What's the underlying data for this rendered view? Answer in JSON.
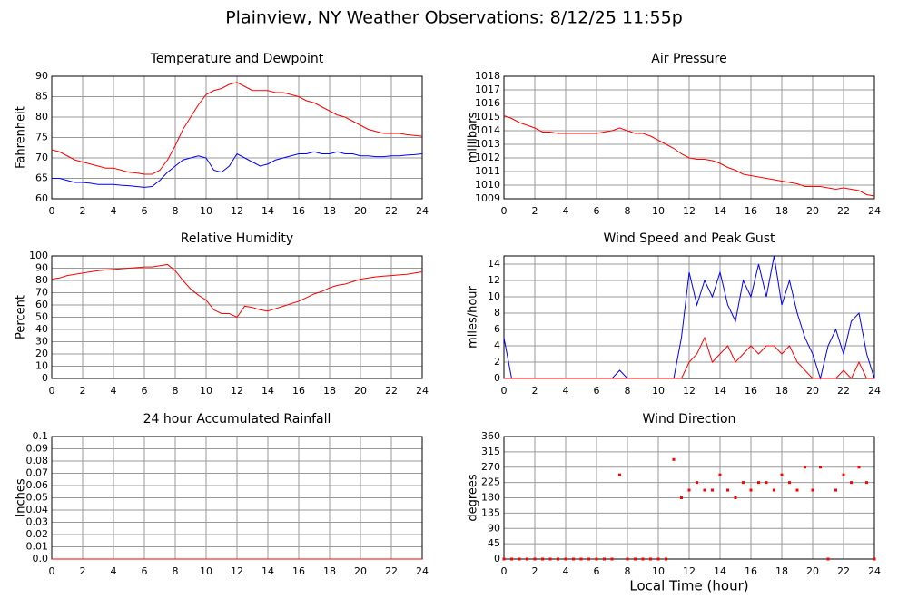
{
  "title": "Plainview, NY Weather Observations: 8/12/25 11:55p",
  "chart_data": [
    {
      "type": "line",
      "title": "Temperature and Dewpoint",
      "ylabel": "Fahrenheit",
      "x": [
        0,
        0.5,
        1,
        1.5,
        2,
        2.5,
        3,
        3.5,
        4,
        4.5,
        5,
        5.5,
        6,
        6.5,
        7,
        7.5,
        8,
        8.5,
        9,
        9.5,
        10,
        10.5,
        11,
        11.5,
        12,
        12.5,
        13,
        13.5,
        14,
        14.5,
        15,
        15.5,
        16,
        16.5,
        17,
        17.5,
        18,
        18.5,
        19,
        19.5,
        20,
        20.5,
        21,
        21.5,
        22,
        22.5,
        23,
        23.5,
        24
      ],
      "series": [
        {
          "color": "#ff0000",
          "values": [
            72,
            71.5,
            70.5,
            69.5,
            69,
            68.5,
            68,
            67.5,
            67.5,
            67,
            66.5,
            66.3,
            66,
            66,
            67,
            69.5,
            73,
            77,
            80,
            83,
            85.5,
            86.5,
            87,
            88,
            88.5,
            87.5,
            86.5,
            86.5,
            86.5,
            86,
            86,
            85.5,
            85,
            84,
            83.5,
            82.5,
            81.5,
            80.5,
            80,
            79,
            78,
            77,
            76.5,
            76,
            76,
            76,
            75.7,
            75.5,
            75.3
          ]
        },
        {
          "color": "#0000ff",
          "values": [
            65,
            65,
            64.5,
            64,
            64,
            63.8,
            63.5,
            63.5,
            63.5,
            63.3,
            63.2,
            63,
            62.8,
            63,
            64.5,
            66.5,
            68,
            69.5,
            70,
            70.5,
            70,
            67,
            66.5,
            68,
            71,
            70,
            69,
            68,
            68.5,
            69.5,
            70,
            70.5,
            71,
            71,
            71.5,
            71,
            71,
            71.5,
            71,
            71,
            70.5,
            70.5,
            70.3,
            70.3,
            70.5,
            70.5,
            70.7,
            70.8,
            71
          ]
        }
      ],
      "xlim": [
        0,
        24
      ],
      "xticks": [
        0,
        2,
        4,
        6,
        8,
        10,
        12,
        14,
        16,
        18,
        20,
        22,
        24
      ],
      "ylim": [
        60,
        90
      ],
      "yticks": [
        60,
        65,
        70,
        75,
        80,
        85,
        90
      ],
      "grid": true
    },
    {
      "type": "line",
      "title": "Air Pressure",
      "ylabel": "millibars",
      "x": [
        0,
        0.5,
        1,
        1.5,
        2,
        2.5,
        3,
        3.5,
        4,
        4.5,
        5,
        5.5,
        6,
        6.5,
        7,
        7.5,
        8,
        8.5,
        9,
        9.5,
        10,
        10.5,
        11,
        11.5,
        12,
        12.5,
        13,
        13.5,
        14,
        14.5,
        15,
        15.5,
        16,
        16.5,
        17,
        17.5,
        18,
        18.5,
        19,
        19.5,
        20,
        20.5,
        21,
        21.5,
        22,
        22.5,
        23,
        23.5,
        24
      ],
      "series": [
        {
          "color": "#ff0000",
          "values": [
            1015.1,
            1014.9,
            1014.6,
            1014.4,
            1014.2,
            1013.9,
            1013.9,
            1013.8,
            1013.8,
            1013.8,
            1013.8,
            1013.8,
            1013.8,
            1013.9,
            1014,
            1014.2,
            1014,
            1013.8,
            1013.8,
            1013.6,
            1013.3,
            1013,
            1012.7,
            1012.3,
            1012,
            1011.9,
            1011.9,
            1011.8,
            1011.6,
            1011.3,
            1011.1,
            1010.8,
            1010.7,
            1010.6,
            1010.5,
            1010.4,
            1010.3,
            1010.2,
            1010.1,
            1009.9,
            1009.9,
            1009.9,
            1009.8,
            1009.7,
            1009.8,
            1009.7,
            1009.6,
            1009.3,
            1009.2
          ]
        }
      ],
      "xlim": [
        0,
        24
      ],
      "xticks": [
        0,
        2,
        4,
        6,
        8,
        10,
        12,
        14,
        16,
        18,
        20,
        22,
        24
      ],
      "ylim": [
        1009,
        1018
      ],
      "yticks": [
        1009,
        1010,
        1011,
        1012,
        1013,
        1014,
        1015,
        1016,
        1017,
        1018
      ],
      "grid": true
    },
    {
      "type": "line",
      "title": "Relative Humidity",
      "ylabel": "Percent",
      "x": [
        0,
        0.5,
        1,
        1.5,
        2,
        2.5,
        3,
        3.5,
        4,
        4.5,
        5,
        5.5,
        6,
        6.5,
        7,
        7.5,
        8,
        8.5,
        9,
        9.5,
        10,
        10.5,
        11,
        11.5,
        12,
        12.5,
        13,
        13.5,
        14,
        14.5,
        15,
        15.5,
        16,
        16.5,
        17,
        17.5,
        18,
        18.5,
        19,
        19.5,
        20,
        20.5,
        21,
        21.5,
        22,
        22.5,
        23,
        23.5,
        24
      ],
      "series": [
        {
          "color": "#ff0000",
          "values": [
            81,
            82,
            84,
            85,
            86,
            87,
            88,
            88.5,
            89,
            89.5,
            90,
            90.5,
            91,
            91,
            92,
            93,
            88,
            80,
            73,
            68,
            64,
            56,
            53,
            53,
            50,
            59,
            58,
            56,
            55,
            57,
            59,
            61,
            63,
            66,
            69,
            71,
            74,
            76,
            77,
            79,
            81,
            82,
            83,
            83.5,
            84,
            84.5,
            85,
            86,
            87
          ]
        }
      ],
      "xlim": [
        0,
        24
      ],
      "xticks": [
        0,
        2,
        4,
        6,
        8,
        10,
        12,
        14,
        16,
        18,
        20,
        22,
        24
      ],
      "ylim": [
        0,
        100
      ],
      "yticks": [
        0,
        10,
        20,
        30,
        40,
        50,
        60,
        70,
        80,
        90,
        100
      ],
      "grid": true
    },
    {
      "type": "line",
      "title": "Wind Speed and Peak Gust",
      "ylabel": "miles/hour",
      "x": [
        0,
        0.5,
        1,
        1.5,
        2,
        2.5,
        3,
        3.5,
        4,
        4.5,
        5,
        5.5,
        6,
        6.5,
        7,
        7.5,
        8,
        8.5,
        9,
        9.5,
        10,
        10.5,
        11,
        11.5,
        12,
        12.5,
        13,
        13.5,
        14,
        14.5,
        15,
        15.5,
        16,
        16.5,
        17,
        17.5,
        18,
        18.5,
        19,
        19.5,
        20,
        20.5,
        21,
        21.5,
        22,
        22.5,
        23,
        23.5,
        24
      ],
      "series": [
        {
          "color": "#0000ff",
          "values": [
            5,
            0,
            0,
            0,
            0,
            0,
            0,
            0,
            0,
            0,
            0,
            0,
            0,
            0,
            0,
            1,
            0,
            0,
            0,
            0,
            0,
            0,
            0,
            5,
            13,
            9,
            12,
            10,
            13,
            9,
            7,
            12,
            10,
            14,
            10,
            15,
            9,
            12,
            8,
            5,
            3,
            0,
            4,
            6,
            3,
            7,
            8,
            3,
            0
          ]
        },
        {
          "color": "#ff0000",
          "values": [
            0,
            0,
            0,
            0,
            0,
            0,
            0,
            0,
            0,
            0,
            0,
            0,
            0,
            0,
            0,
            0,
            0,
            0,
            0,
            0,
            0,
            0,
            0,
            0,
            2,
            3,
            5,
            2,
            3,
            4,
            2,
            3,
            4,
            3,
            4,
            4,
            3,
            4,
            2,
            1,
            0,
            0,
            0,
            0,
            1,
            0,
            2,
            0,
            0
          ]
        }
      ],
      "xlim": [
        0,
        24
      ],
      "xticks": [
        0,
        2,
        4,
        6,
        8,
        10,
        12,
        14,
        16,
        18,
        20,
        22,
        24
      ],
      "ylim": [
        0,
        15
      ],
      "yticks": [
        0,
        2,
        4,
        6,
        8,
        10,
        12,
        14
      ],
      "grid": true
    },
    {
      "type": "line",
      "title": "24 hour Accumulated Rainfall",
      "ylabel": "Inches",
      "x": [
        0,
        1,
        2,
        3,
        4,
        5,
        6,
        7,
        8,
        9,
        10,
        11,
        12,
        13,
        14,
        15,
        16,
        17,
        18,
        19,
        20,
        21,
        22,
        23,
        24
      ],
      "series": [
        {
          "color": "#ff0000",
          "values": [
            0,
            0,
            0,
            0,
            0,
            0,
            0,
            0,
            0,
            0,
            0,
            0,
            0,
            0,
            0,
            0,
            0,
            0,
            0,
            0,
            0,
            0,
            0,
            0,
            0
          ]
        }
      ],
      "xlim": [
        0,
        24
      ],
      "xticks": [
        0,
        2,
        4,
        6,
        8,
        10,
        12,
        14,
        16,
        18,
        20,
        22,
        24
      ],
      "ylim": [
        0,
        0.1
      ],
      "yticks": [
        {
          "value": 0,
          "label": "0.0"
        },
        0.01,
        0.02,
        0.03,
        0.04,
        0.05,
        0.06,
        0.07,
        0.08,
        0.09,
        0.1
      ],
      "grid": true
    },
    {
      "type": "scatter",
      "title": "Wind Direction",
      "ylabel": "degrees",
      "xlabel": "Local Time (hour)",
      "x": [
        0,
        0.5,
        1,
        1.5,
        2,
        2.5,
        3,
        3.5,
        4,
        4.5,
        5,
        5.5,
        6,
        6.5,
        7,
        7.5,
        8,
        8.5,
        9,
        9.5,
        10,
        10.5,
        11,
        11.5,
        12,
        12.5,
        13,
        13.5,
        14,
        14.5,
        15,
        15.5,
        16,
        16.5,
        17,
        17.5,
        18,
        18.5,
        19,
        19.5,
        20,
        20.5,
        21,
        21.5,
        22,
        22.5,
        23,
        23.5,
        24
      ],
      "series": [
        {
          "color": "#ff0000",
          "values": [
            0,
            0,
            0,
            0,
            0,
            0,
            0,
            0,
            0,
            0,
            0,
            0,
            0,
            0,
            0,
            247.5,
            0,
            0,
            0,
            0,
            0,
            0,
            292.5,
            180,
            202.5,
            225,
            202.5,
            202.5,
            247.5,
            202.5,
            180,
            225,
            202.5,
            225,
            225,
            202.5,
            247.5,
            225,
            202.5,
            270,
            202.5,
            270,
            0,
            202.5,
            247.5,
            225,
            270,
            225,
            0
          ]
        }
      ],
      "xlim": [
        0,
        24
      ],
      "xticks": [
        0,
        2,
        4,
        6,
        8,
        10,
        12,
        14,
        16,
        18,
        20,
        22,
        24
      ],
      "ylim": [
        0,
        360
      ],
      "yticks": [
        0,
        45,
        90,
        135,
        180,
        225,
        270,
        315,
        360
      ],
      "grid": true
    }
  ]
}
